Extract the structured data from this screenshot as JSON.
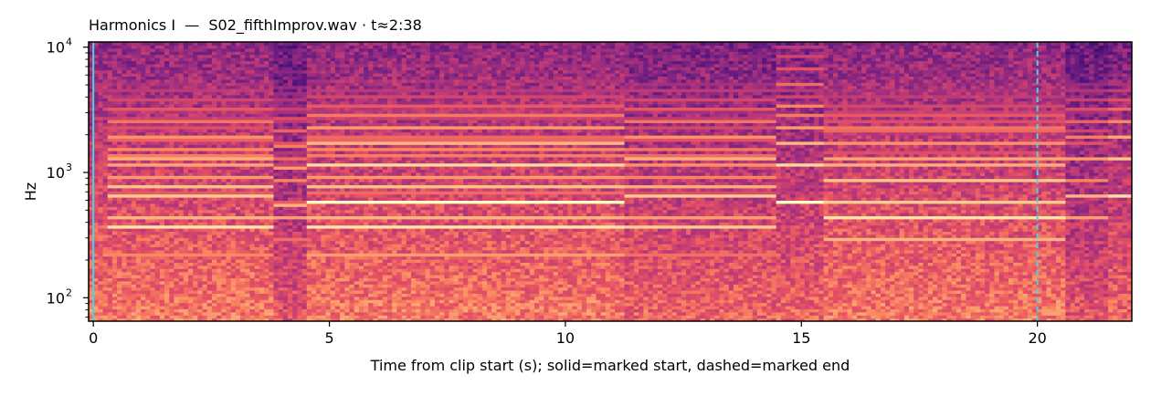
{
  "chart_data": {
    "type": "heatmap",
    "title": "Harmonics I  —  S02_fifthImprov.wav · t≈2:38",
    "xlabel": "Time from clip start (s); solid=marked start, dashed=marked end",
    "ylabel": "Hz",
    "xlim": [
      -0.1,
      22.0
    ],
    "ylim": [
      65,
      11000
    ],
    "yscale": "log",
    "x_ticks": [
      0,
      5,
      10,
      15,
      20
    ],
    "x_tick_labels": [
      "0",
      "5",
      "10",
      "15",
      "20"
    ],
    "y_ticks": [
      100,
      1000,
      10000
    ],
    "y_tick_labels": [
      {
        "base": "10",
        "exp": "2"
      },
      {
        "base": "10",
        "exp": "3"
      },
      {
        "base": "10",
        "exp": "4"
      }
    ],
    "colormap": "magma",
    "markers": [
      {
        "kind": "solid",
        "x": 0.0,
        "color": "#40d8e8"
      },
      {
        "kind": "dashed",
        "x": 20.0,
        "color": "#40d8e8"
      }
    ],
    "segments": [
      {
        "t0": -0.1,
        "t1": 0.3,
        "brightness": 0.55,
        "lines": [
          {
            "hz": 380,
            "level": 0.7
          },
          {
            "hz": 450,
            "level": 0.6
          }
        ]
      },
      {
        "t0": 0.3,
        "t1": 3.8,
        "brightness": 0.55,
        "lines": [
          {
            "hz": 225,
            "level": 0.75
          },
          {
            "hz": 380,
            "level": 0.95
          },
          {
            "hz": 450,
            "level": 0.85
          },
          {
            "hz": 640,
            "level": 0.9
          },
          {
            "hz": 1200,
            "level": 0.5
          }
        ]
      },
      {
        "t0": 3.8,
        "t1": 4.5,
        "brightness": 0.45,
        "lines": [
          {
            "hz": 290,
            "level": 0.7
          },
          {
            "hz": 430,
            "level": 0.8
          },
          {
            "hz": 540,
            "level": 0.85
          },
          {
            "hz": 1600,
            "level": 0.5
          }
        ]
      },
      {
        "t0": 4.5,
        "t1": 11.3,
        "brightness": 0.55,
        "lines": [
          {
            "hz": 225,
            "level": 0.8
          },
          {
            "hz": 380,
            "level": 0.95
          },
          {
            "hz": 450,
            "level": 0.85
          },
          {
            "hz": 580,
            "level": 1.0
          },
          {
            "hz": 1750,
            "level": 0.55
          }
        ]
      },
      {
        "t0": 11.3,
        "t1": 14.5,
        "brightness": 0.5,
        "lines": [
          {
            "hz": 225,
            "level": 0.7
          },
          {
            "hz": 380,
            "level": 0.9
          },
          {
            "hz": 450,
            "level": 0.8
          },
          {
            "hz": 650,
            "level": 0.9
          }
        ]
      },
      {
        "t0": 14.5,
        "t1": 15.5,
        "brightness": 0.5,
        "lines": [
          {
            "hz": 580,
            "level": 1.0
          },
          {
            "hz": 1700,
            "level": 0.8
          }
        ]
      },
      {
        "t0": 15.5,
        "t1": 20.6,
        "brightness": 0.55,
        "lines": [
          {
            "hz": 290,
            "level": 0.85
          },
          {
            "hz": 440,
            "level": 0.95
          },
          {
            "hz": 580,
            "level": 0.9
          },
          {
            "hz": 870,
            "level": 0.6
          }
        ]
      },
      {
        "t0": 20.6,
        "t1": 21.5,
        "brightness": 0.45,
        "lines": [
          {
            "hz": 440,
            "level": 0.8
          },
          {
            "hz": 650,
            "level": 0.85
          }
        ]
      },
      {
        "t0": 21.5,
        "t1": 22.0,
        "brightness": 0.5,
        "lines": [
          {
            "hz": 640,
            "level": 0.95
          },
          {
            "hz": 300,
            "level": 0.6
          }
        ]
      }
    ]
  }
}
